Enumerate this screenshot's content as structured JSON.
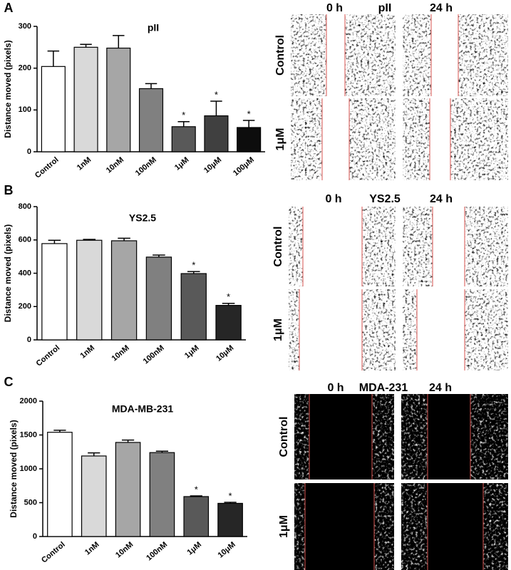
{
  "chart_data": [
    {
      "type": "bar",
      "panel_label": "A",
      "title": "pII",
      "y_label": "Distance moved (pixels)",
      "categories": [
        "Control",
        "1nM",
        "10nM",
        "100nM",
        "1μM",
        "10μM",
        "100μM"
      ],
      "values": [
        204,
        250,
        248,
        151,
        60,
        86,
        58
      ],
      "errors": [
        37,
        7,
        30,
        12,
        12,
        35,
        17
      ],
      "annotations": [
        null,
        null,
        null,
        null,
        "*",
        "*",
        "*"
      ],
      "colors": [
        "#ffffff",
        "#d9d9d9",
        "#a6a6a6",
        "#808080",
        "#595959",
        "#404040",
        "#0d0d0d"
      ],
      "ylim": [
        0,
        300
      ],
      "yticks": [
        0,
        100,
        200,
        300
      ]
    },
    {
      "type": "bar",
      "panel_label": "B",
      "title": "YS2.5",
      "y_label": "Distance moved (pixels)",
      "categories": [
        "Control",
        "1nM",
        "10nM",
        "100nM",
        "1μM",
        "10μM"
      ],
      "values": [
        578,
        598,
        595,
        497,
        398,
        207
      ],
      "errors": [
        20,
        5,
        15,
        12,
        12,
        12
      ],
      "annotations": [
        null,
        null,
        null,
        null,
        "*",
        "*"
      ],
      "colors": [
        "#ffffff",
        "#d9d9d9",
        "#a6a6a6",
        "#808080",
        "#595959",
        "#262626"
      ],
      "ylim": [
        0,
        800
      ],
      "yticks": [
        0,
        200,
        400,
        600,
        800
      ]
    },
    {
      "type": "bar",
      "panel_label": "C",
      "title": "MDA-MB-231",
      "y_label": "Distance moved (pixels)",
      "categories": [
        "Control",
        "1nM",
        "10nM",
        "100nM",
        "1μM",
        "10μM"
      ],
      "values": [
        1540,
        1190,
        1390,
        1240,
        590,
        490
      ],
      "errors": [
        30,
        45,
        35,
        20,
        10,
        15
      ],
      "annotations": [
        null,
        null,
        null,
        null,
        "*",
        "*"
      ],
      "colors": [
        "#ffffff",
        "#d9d9d9",
        "#a6a6a6",
        "#808080",
        "#595959",
        "#262626"
      ],
      "ylim": [
        0,
        2000
      ],
      "yticks": [
        0,
        500,
        1000,
        1500,
        2000
      ]
    }
  ],
  "micrographs": [
    {
      "title": "pII",
      "times": [
        "0 h",
        "24 h"
      ],
      "rows": [
        "Control",
        "1μM"
      ]
    },
    {
      "title": "YS2.5",
      "times": [
        "0 h",
        "24 h"
      ],
      "rows": [
        "Control",
        "1μM"
      ]
    },
    {
      "title": "MDA-231",
      "times": [
        "0 h",
        "24 h"
      ],
      "rows": [
        "Control",
        "1μM"
      ]
    }
  ]
}
